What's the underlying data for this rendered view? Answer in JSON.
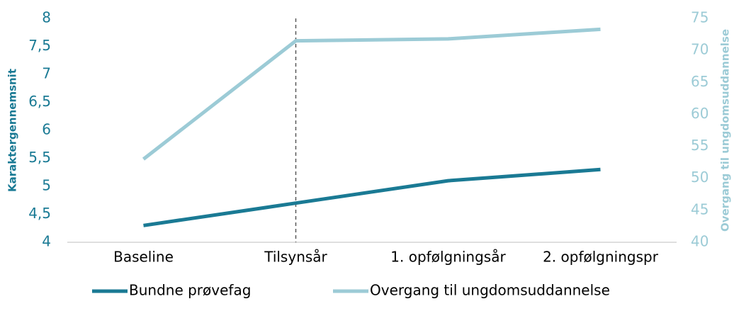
{
  "chart_data": {
    "type": "line",
    "categories": [
      "Baseline",
      "Tilsynsår",
      "1. opfølgningsår",
      "2. opfølgningspr"
    ],
    "series": [
      {
        "name": "Bundne prøvefag",
        "color": "#1a7a94",
        "values": [
          4.3,
          4.7,
          5.1,
          5.3
        ]
      },
      {
        "name": "Overgang til ungdomsuddannelse",
        "color": "#9ccbd6",
        "axis": "y2",
        "values": [
          53,
          71.5,
          71.8,
          73.3
        ]
      }
    ],
    "ylabel": "Karaktergennemsnit",
    "y2label": "Overgang til ungdomsuddannelse",
    "ylim": [
      4,
      8
    ],
    "yticks": [
      4,
      {
        "value": 4.5,
        "label": "4,5"
      },
      5,
      {
        "value": 5.5,
        "label": "5,5"
      },
      6,
      {
        "value": 6.5,
        "label": "6,5"
      },
      7,
      {
        "value": 7.5,
        "label": "7,5"
      },
      8
    ],
    "y2lim": [
      40,
      75
    ],
    "y2ticks": [
      40,
      45,
      50,
      55,
      60,
      65,
      70,
      75
    ],
    "grid": false,
    "legend": "bottom"
  }
}
